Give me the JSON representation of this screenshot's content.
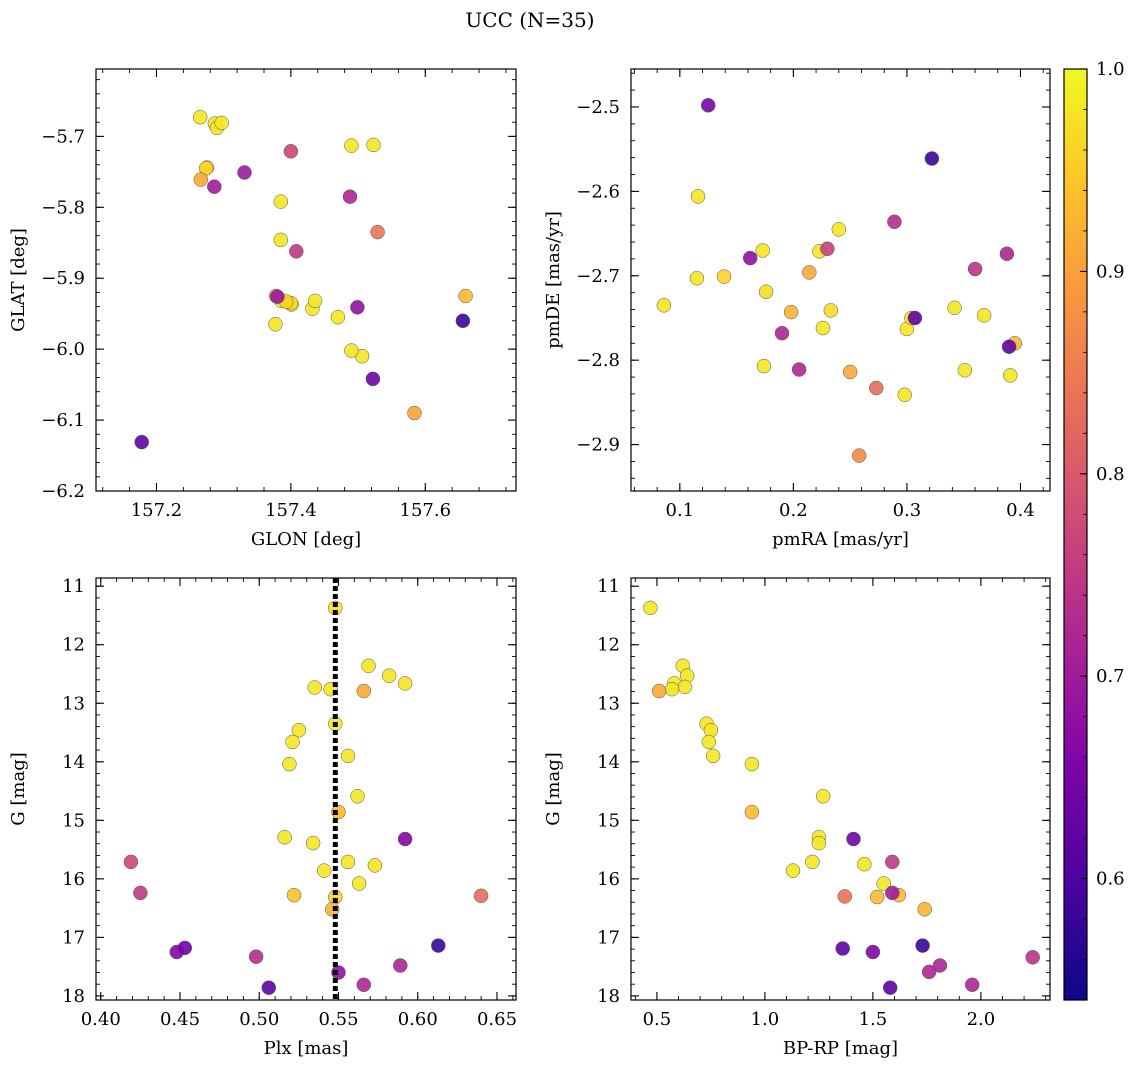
{
  "figure": {
    "suptitle": "UCC (N=35)",
    "colormap": "plasma",
    "marker_edge_color": "#555555"
  },
  "colorbar": {
    "range": [
      0.54,
      1.0
    ],
    "ticks": [
      0.6,
      0.7,
      0.8,
      0.9,
      1.0
    ],
    "tick_labels": [
      "0.6",
      "0.7",
      "0.8",
      "0.9",
      "1.0"
    ]
  },
  "chart_data": [
    {
      "type": "scatter",
      "xlabel": "GLON [deg]",
      "ylabel": "GLAT [deg]",
      "xlim": [
        157.11,
        157.735
      ],
      "ylim": [
        -6.2,
        -5.605
      ],
      "xticks": [
        157.2,
        157.4,
        157.6
      ],
      "xtick_labels": [
        "157.2",
        "157.4",
        "157.6"
      ],
      "yticks": [
        -6.2,
        -6.1,
        -6.0,
        -5.9,
        -5.8,
        -5.7
      ],
      "ytick_labels": [
        "−6.2",
        "−6.1",
        "−6.0",
        "−5.9",
        "−5.8",
        "−5.7"
      ],
      "yinvert": false,
      "x": [
        157.265,
        157.287,
        157.29,
        157.297,
        157.275,
        157.274,
        157.266,
        157.286,
        157.331,
        157.4,
        157.385,
        157.385,
        157.408,
        157.378,
        157.38,
        157.386,
        157.4,
        157.432,
        157.436,
        157.377,
        157.47,
        157.49,
        157.523,
        157.488,
        157.506,
        157.499,
        157.529,
        157.49,
        157.522,
        157.656,
        157.584,
        157.66,
        157.178,
        157.393,
        157.401
      ],
      "y": [
        -5.673,
        -5.682,
        -5.688,
        -5.681,
        -5.744,
        -5.745,
        -5.761,
        -5.771,
        -5.751,
        -5.721,
        -5.792,
        -5.846,
        -5.862,
        -5.925,
        -5.926,
        -5.932,
        -5.935,
        -5.943,
        -5.932,
        -5.965,
        -5.955,
        -5.713,
        -5.712,
        -5.785,
        -6.01,
        -5.941,
        -5.835,
        -6.002,
        -6.042,
        -5.96,
        -6.09,
        -5.925,
        -6.131,
        -5.933,
        -5.937
      ],
      "values": [
        0.98,
        0.98,
        0.98,
        0.98,
        0.97,
        0.96,
        0.91,
        0.7,
        0.7,
        0.77,
        0.98,
        0.98,
        0.75,
        0.88,
        0.7,
        0.98,
        0.97,
        0.98,
        0.98,
        0.98,
        0.98,
        0.98,
        0.98,
        0.72,
        0.98,
        0.68,
        0.84,
        0.98,
        0.64,
        0.58,
        0.9,
        0.93,
        0.62,
        0.96,
        0.98
      ]
    },
    {
      "type": "scatter",
      "xlabel": "pmRA [mas/yr]",
      "ylabel": "pmDE [mas/yr]",
      "xlim": [
        0.057,
        0.426
      ],
      "ylim": [
        -2.955,
        -2.455
      ],
      "xticks": [
        0.1,
        0.2,
        0.3,
        0.4
      ],
      "xtick_labels": [
        "0.1",
        "0.2",
        "0.3",
        "0.4"
      ],
      "yticks": [
        -2.9,
        -2.8,
        -2.7,
        -2.6,
        -2.5
      ],
      "ytick_labels": [
        "−2.9",
        "−2.8",
        "−2.7",
        "−2.6",
        "−2.5"
      ],
      "yinvert": false,
      "x": [
        0.125,
        0.322,
        0.116,
        0.086,
        0.115,
        0.139,
        0.162,
        0.173,
        0.176,
        0.19,
        0.198,
        0.205,
        0.174,
        0.214,
        0.223,
        0.226,
        0.23,
        0.233,
        0.24,
        0.25,
        0.258,
        0.273,
        0.289,
        0.3,
        0.304,
        0.307,
        0.298,
        0.342,
        0.351,
        0.36,
        0.368,
        0.388,
        0.39,
        0.395,
        0.391
      ],
      "y": [
        -2.498,
        -2.561,
        -2.606,
        -2.735,
        -2.703,
        -2.701,
        -2.679,
        -2.67,
        -2.719,
        -2.768,
        -2.743,
        -2.811,
        -2.807,
        -2.696,
        -2.671,
        -2.762,
        -2.668,
        -2.741,
        -2.645,
        -2.814,
        -2.913,
        -2.833,
        -2.636,
        -2.763,
        -2.75,
        -2.75,
        -2.841,
        -2.738,
        -2.812,
        -2.692,
        -2.747,
        -2.674,
        -2.784,
        -2.78,
        -2.818
      ],
      "values": [
        0.65,
        0.58,
        0.98,
        0.98,
        0.98,
        0.96,
        0.68,
        0.98,
        0.97,
        0.72,
        0.92,
        0.72,
        0.98,
        0.91,
        0.98,
        0.98,
        0.76,
        0.97,
        0.98,
        0.91,
        0.87,
        0.83,
        0.73,
        0.98,
        0.98,
        0.62,
        0.98,
        0.98,
        0.98,
        0.74,
        0.98,
        0.72,
        0.62,
        0.93,
        0.98
      ]
    },
    {
      "type": "scatter",
      "xlabel": "Plx [mas]",
      "ylabel": "G [mag]",
      "xlim": [
        0.397,
        0.662
      ],
      "ylim": [
        18.07,
        10.86
      ],
      "xticks": [
        0.4,
        0.45,
        0.5,
        0.55,
        0.6,
        0.65
      ],
      "xtick_labels": [
        "0.40",
        "0.45",
        "0.50",
        "0.55",
        "0.60",
        "0.65"
      ],
      "yticks": [
        11,
        12,
        13,
        14,
        15,
        16,
        17,
        18
      ],
      "ytick_labels": [
        "11",
        "12",
        "13",
        "14",
        "15",
        "16",
        "17",
        "18"
      ],
      "yinvert": true,
      "vline_x": 0.548,
      "x": [
        0.548,
        0.569,
        0.582,
        0.592,
        0.535,
        0.545,
        0.566,
        0.548,
        0.525,
        0.521,
        0.556,
        0.519,
        0.562,
        0.55,
        0.516,
        0.534,
        0.592,
        0.419,
        0.556,
        0.541,
        0.573,
        0.425,
        0.563,
        0.522,
        0.548,
        0.546,
        0.64,
        0.448,
        0.453,
        0.498,
        0.613,
        0.589,
        0.55,
        0.566,
        0.506
      ],
      "y": [
        11.37,
        12.36,
        12.53,
        12.66,
        12.73,
        12.76,
        12.79,
        13.35,
        13.46,
        13.66,
        13.9,
        14.04,
        14.59,
        14.86,
        15.29,
        15.39,
        15.32,
        15.71,
        15.71,
        15.86,
        15.77,
        16.24,
        16.08,
        16.28,
        16.31,
        16.52,
        16.29,
        17.25,
        17.18,
        17.33,
        17.14,
        17.48,
        17.6,
        17.81,
        17.86
      ],
      "values": [
        0.98,
        0.98,
        0.98,
        0.98,
        0.98,
        0.98,
        0.91,
        0.98,
        0.98,
        0.98,
        0.98,
        0.98,
        0.98,
        0.93,
        0.98,
        0.98,
        0.66,
        0.77,
        0.98,
        0.98,
        0.98,
        0.75,
        0.98,
        0.94,
        0.96,
        0.92,
        0.83,
        0.66,
        0.64,
        0.73,
        0.58,
        0.72,
        0.68,
        0.72,
        0.62
      ]
    },
    {
      "type": "scatter",
      "xlabel": "BP-RP [mag]",
      "ylabel": "G [mag]",
      "xlim": [
        0.38,
        2.32
      ],
      "ylim": [
        18.07,
        10.86
      ],
      "xticks": [
        0.5,
        1.0,
        1.5,
        2.0
      ],
      "xtick_labels": [
        "0.5",
        "1.0",
        "1.5",
        "2.0"
      ],
      "yticks": [
        11,
        12,
        13,
        14,
        15,
        16,
        17,
        18
      ],
      "ytick_labels": [
        "11",
        "12",
        "13",
        "14",
        "15",
        "16",
        "17",
        "18"
      ],
      "yinvert": true,
      "x": [
        0.47,
        0.62,
        0.64,
        0.58,
        0.63,
        0.57,
        0.51,
        0.73,
        0.75,
        0.74,
        0.76,
        0.94,
        0.94,
        1.27,
        1.25,
        1.25,
        1.41,
        1.13,
        1.22,
        1.46,
        1.59,
        1.59,
        1.55,
        1.62,
        1.52,
        1.37,
        1.74,
        1.36,
        1.5,
        1.73,
        1.81,
        1.96,
        1.76,
        1.58,
        2.24
      ],
      "y": [
        11.37,
        12.36,
        12.53,
        12.66,
        12.72,
        12.76,
        12.79,
        13.35,
        13.46,
        13.66,
        13.9,
        14.04,
        14.86,
        14.59,
        15.29,
        15.39,
        15.32,
        15.86,
        15.71,
        15.75,
        15.71,
        16.24,
        16.08,
        16.28,
        16.31,
        16.3,
        16.52,
        17.19,
        17.25,
        17.14,
        17.48,
        17.81,
        17.59,
        17.86,
        17.34
      ],
      "values": [
        0.98,
        0.98,
        0.98,
        0.98,
        0.98,
        0.98,
        0.91,
        0.98,
        0.98,
        0.98,
        0.98,
        0.98,
        0.93,
        0.98,
        0.98,
        0.98,
        0.64,
        0.98,
        0.98,
        0.98,
        0.75,
        0.7,
        0.98,
        0.93,
        0.93,
        0.84,
        0.92,
        0.62,
        0.66,
        0.58,
        0.72,
        0.72,
        0.72,
        0.62,
        0.74
      ]
    }
  ]
}
